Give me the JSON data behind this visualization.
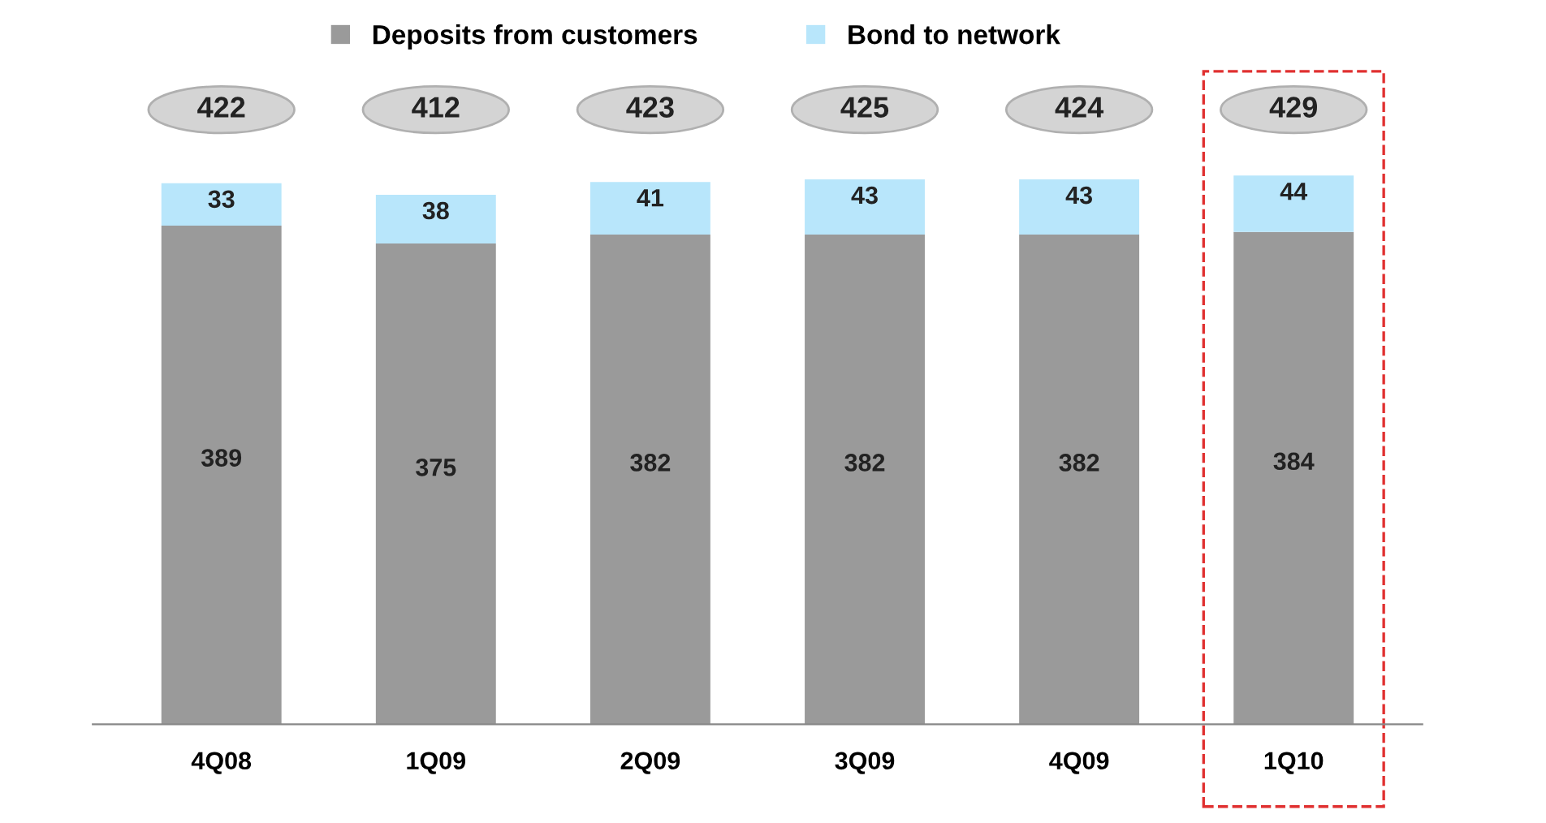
{
  "chart_data": {
    "type": "bar",
    "stacked": true,
    "categories": [
      "4Q08",
      "1Q09",
      "2Q09",
      "3Q09",
      "4Q09",
      "1Q10"
    ],
    "series": [
      {
        "name": "Deposits from customers",
        "color": "#9a9a9a",
        "values": [
          389,
          375,
          382,
          382,
          382,
          384
        ]
      },
      {
        "name": "Bond to network",
        "color": "#b8e6fb",
        "values": [
          33,
          38,
          41,
          43,
          43,
          44
        ]
      }
    ],
    "data_labels": true,
    "totals": [
      "422",
      "412",
      "423",
      "425",
      "424",
      "429"
    ],
    "legend": "top",
    "grid": false
  }
}
